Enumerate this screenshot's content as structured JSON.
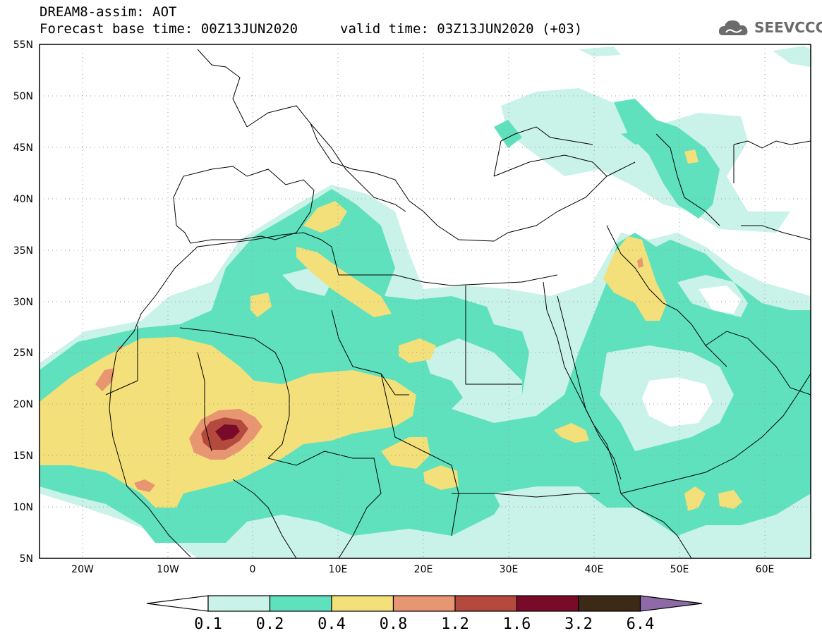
{
  "header": {
    "line1": "DREAM8-assim: AOT",
    "base_time": "Forecast base time: 00Z13JUN2020",
    "valid_time": "valid time: 03Z13JUN2020 (+03)"
  },
  "logo": {
    "text": "SEEVCCC",
    "icon": "cloud-icon",
    "color": "#6b6b6b"
  },
  "map": {
    "lat_labels": [
      "55N",
      "50N",
      "45N",
      "40N",
      "35N",
      "30N",
      "25N",
      "20N",
      "15N",
      "10N",
      "5N"
    ],
    "lon_labels": [
      "20W",
      "10W",
      "0",
      "10E",
      "20E",
      "30E",
      "40E",
      "50E",
      "60E"
    ],
    "extent": {
      "lon": [
        -25,
        65
      ],
      "lat": [
        5,
        55
      ]
    },
    "gridlines": "dotted"
  },
  "colorbar": {
    "labels": [
      "0.1",
      "0.2",
      "0.4",
      "0.8",
      "1.2",
      "1.6",
      "3.2",
      "6.4"
    ],
    "colors": [
      "#ffffff",
      "#c9f2e8",
      "#5fe1bd",
      "#f3e07a",
      "#e89672",
      "#b44a3e",
      "#7a0a2a",
      "#3d2a16",
      "#8e6aa8"
    ]
  }
}
